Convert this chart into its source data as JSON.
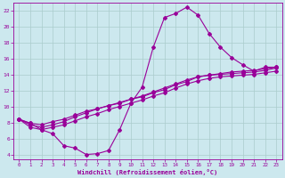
{
  "xlabel": "Windchill (Refroidissement éolien,°C)",
  "xlim": [
    -0.5,
    23.5
  ],
  "ylim": [
    3.5,
    23.0
  ],
  "xticks": [
    0,
    1,
    2,
    3,
    4,
    5,
    6,
    7,
    8,
    9,
    10,
    11,
    12,
    13,
    14,
    15,
    16,
    17,
    18,
    19,
    20,
    21,
    22,
    23
  ],
  "yticks": [
    4,
    6,
    8,
    10,
    12,
    14,
    16,
    18,
    20,
    22
  ],
  "bg_color": "#cce8ee",
  "grid_color": "#aacccc",
  "line_color": "#990099",
  "lines": [
    {
      "x": [
        0,
        1,
        2,
        3,
        4,
        5,
        6,
        7,
        8,
        9,
        10,
        11,
        12,
        13,
        14,
        15,
        16,
        17,
        18,
        19,
        20,
        21,
        22,
        23
      ],
      "y": [
        8.5,
        8.0,
        7.2,
        6.7,
        5.2,
        4.9,
        4.1,
        4.2,
        4.6,
        7.2,
        10.5,
        12.5,
        17.5,
        21.2,
        21.7,
        22.5,
        21.5,
        19.2,
        17.5,
        16.2,
        15.3,
        14.5,
        15.0,
        15.0
      ]
    },
    {
      "x": [
        0,
        1,
        2,
        3,
        4,
        5,
        6,
        7,
        8,
        9,
        10,
        11,
        12,
        13,
        14,
        15,
        16,
        17,
        18,
        19,
        20,
        21,
        22,
        23
      ],
      "y": [
        8.5,
        8.0,
        7.8,
        8.2,
        8.5,
        9.0,
        9.5,
        9.8,
        10.2,
        10.5,
        11.0,
        11.3,
        11.8,
        12.2,
        12.8,
        13.2,
        13.8,
        14.0,
        14.2,
        14.4,
        14.5,
        14.6,
        14.8,
        15.0
      ]
    },
    {
      "x": [
        0,
        1,
        2,
        3,
        4,
        5,
        6,
        7,
        8,
        9,
        10,
        11,
        12,
        13,
        14,
        15,
        16,
        17,
        18,
        19,
        20,
        21,
        22,
        23
      ],
      "y": [
        8.5,
        7.8,
        7.5,
        7.8,
        8.2,
        8.8,
        9.3,
        9.8,
        10.2,
        10.6,
        11.0,
        11.4,
        11.9,
        12.4,
        12.9,
        13.4,
        13.8,
        14.0,
        14.1,
        14.2,
        14.3,
        14.4,
        14.6,
        14.9
      ]
    },
    {
      "x": [
        0,
        1,
        2,
        3,
        4,
        5,
        6,
        7,
        8,
        9,
        10,
        11,
        12,
        13,
        14,
        15,
        16,
        17,
        18,
        19,
        20,
        21,
        22,
        23
      ],
      "y": [
        8.5,
        7.5,
        7.2,
        7.5,
        7.8,
        8.3,
        8.8,
        9.2,
        9.7,
        10.1,
        10.5,
        10.9,
        11.4,
        11.8,
        12.4,
        12.9,
        13.3,
        13.6,
        13.8,
        13.9,
        14.0,
        14.1,
        14.3,
        14.5
      ]
    }
  ]
}
